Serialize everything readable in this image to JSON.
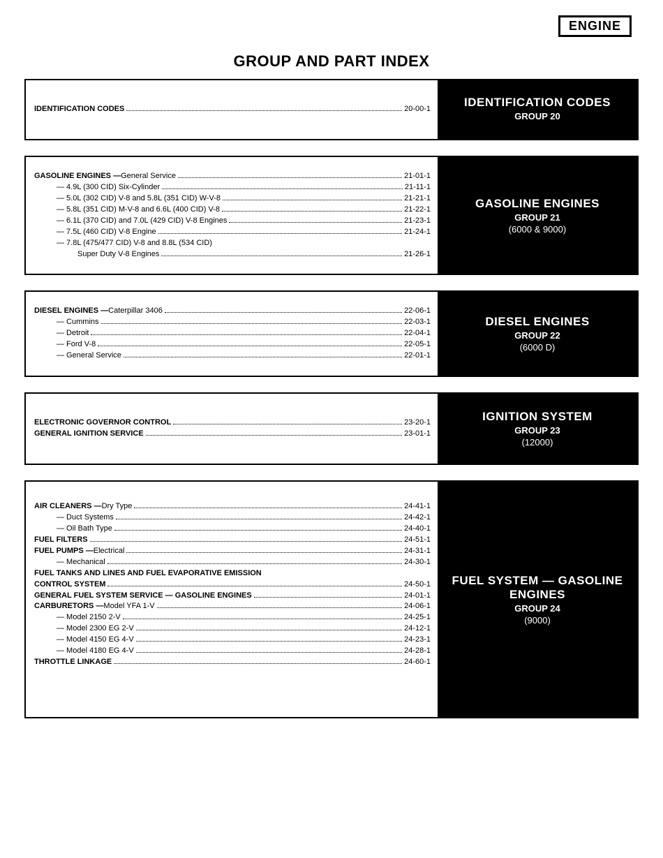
{
  "header": {
    "engine_label": "ENGINE",
    "main_title": "GROUP AND PART INDEX"
  },
  "sections": [
    {
      "right": {
        "title": "IDENTIFICATION CODES",
        "group": "GROUP 20",
        "sub": ""
      },
      "entries": [
        {
          "bold": true,
          "indent": 0,
          "label": "IDENTIFICATION CODES",
          "page": "20-00-1"
        }
      ]
    },
    {
      "right": {
        "title": "GASOLINE ENGINES",
        "group": "GROUP 21",
        "sub": "(6000 & 9000)"
      },
      "entries": [
        {
          "bold": true,
          "indent": 0,
          "label": "GASOLINE ENGINES —",
          "after": " General Service",
          "page": "21-01-1"
        },
        {
          "bold": false,
          "indent": 1,
          "label": "— 4.9L (300 CID) Six-Cylinder",
          "page": "21-11-1"
        },
        {
          "bold": false,
          "indent": 1,
          "label": "— 5.0L (302 CID) V-8 and 5.8L (351 CID) W-V-8",
          "page": "21-21-1"
        },
        {
          "bold": false,
          "indent": 1,
          "label": "— 5.8L (351 CID) M-V-8 and 6.6L (400 CID) V-8",
          "page": "21-22-1"
        },
        {
          "bold": false,
          "indent": 1,
          "label": "— 6.1L (370 CID) and 7.0L (429 CID) V-8 Engines",
          "page": "21-23-1"
        },
        {
          "bold": false,
          "indent": 1,
          "label": "— 7.5L (460 CID) V-8 Engine",
          "page": "21-24-1"
        },
        {
          "bold": false,
          "indent": 1,
          "label": "— 7.8L (475/477 CID) V-8 and 8.8L (534 CID)",
          "page": "",
          "nopage": true
        },
        {
          "bold": false,
          "indent": 2,
          "label": "Super Duty V-8 Engines",
          "page": "21-26-1"
        }
      ]
    },
    {
      "right": {
        "title": "DIESEL ENGINES",
        "group": "GROUP 22",
        "sub": "(6000 D)"
      },
      "entries": [
        {
          "bold": true,
          "indent": 0,
          "label": "DIESEL ENGINES —",
          "after": " Caterpillar 3406",
          "page": "22-06-1"
        },
        {
          "bold": false,
          "indent": 1,
          "label": "— Cummins",
          "page": "22-03-1"
        },
        {
          "bold": false,
          "indent": 1,
          "label": "— Detroit",
          "page": "22-04-1"
        },
        {
          "bold": false,
          "indent": 1,
          "label": "— Ford V-8",
          "page": "22-05-1"
        },
        {
          "bold": false,
          "indent": 1,
          "label": "— General Service",
          "page": "22-01-1"
        }
      ]
    },
    {
      "right": {
        "title": "IGNITION SYSTEM",
        "group": "GROUP 23",
        "sub": "(12000)"
      },
      "entries": [
        {
          "bold": true,
          "indent": 0,
          "label": "ELECTRONIC GOVERNOR CONTROL",
          "page": "23-20-1"
        },
        {
          "bold": true,
          "indent": 0,
          "label": "GENERAL IGNITION SERVICE",
          "page": "23-01-1"
        }
      ]
    },
    {
      "right": {
        "title": "FUEL SYSTEM — GASOLINE ENGINES",
        "group": "GROUP 24",
        "sub": "(9000)"
      },
      "entries": [
        {
          "bold": true,
          "indent": 0,
          "label": "AIR CLEANERS —",
          "after": " Dry Type",
          "page": "24-41-1"
        },
        {
          "bold": false,
          "indent": 1,
          "label": "— Duct Systems",
          "page": "24-42-1"
        },
        {
          "bold": false,
          "indent": 1,
          "label": "— Oil Bath Type",
          "page": "24-40-1"
        },
        {
          "bold": true,
          "indent": 0,
          "label": "FUEL FILTERS",
          "page": "24-51-1"
        },
        {
          "bold": true,
          "indent": 0,
          "label": "FUEL PUMPS —",
          "after": " Electrical",
          "page": "24-31-1"
        },
        {
          "bold": false,
          "indent": 1,
          "label": "— Mechanical",
          "page": "24-30-1"
        },
        {
          "bold": true,
          "indent": 0,
          "label": "FUEL TANKS AND LINES AND FUEL EVAPORATIVE EMISSION",
          "page": "",
          "nopage": true
        },
        {
          "bold": true,
          "indent": 0,
          "label": "CONTROL SYSTEM",
          "page": "24-50-1"
        },
        {
          "bold": true,
          "indent": 0,
          "label": "GENERAL FUEL SYSTEM SERVICE — GASOLINE ENGINES",
          "page": "24-01-1"
        },
        {
          "bold": true,
          "indent": 0,
          "label": "CARBURETORS —",
          "after": " Model YFA 1-V",
          "page": "24-06-1"
        },
        {
          "bold": false,
          "indent": 1,
          "label": "— Model 2150 2-V",
          "page": "24-25-1"
        },
        {
          "bold": false,
          "indent": 1,
          "label": "— Model 2300 EG 2-V",
          "page": "24-12-1"
        },
        {
          "bold": false,
          "indent": 1,
          "label": "— Model 4150 EG 4-V",
          "page": "24-23-1"
        },
        {
          "bold": false,
          "indent": 1,
          "label": "— Model 4180 EG 4-V",
          "page": "24-28-1"
        },
        {
          "bold": true,
          "indent": 0,
          "label": "THROTTLE LINKAGE",
          "page": "24-60-1"
        }
      ]
    }
  ]
}
